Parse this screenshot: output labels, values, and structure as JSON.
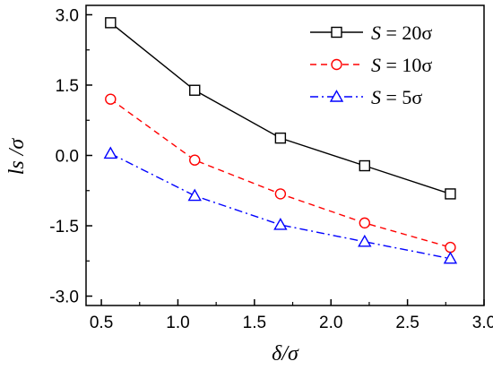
{
  "chart_data": {
    "type": "line",
    "xlabel": "δ/σ",
    "ylabel": "ls /σ",
    "xlim": [
      0.4,
      3.0
    ],
    "ylim": [
      -3.2,
      3.2
    ],
    "xticks": [
      "0.5",
      "1.0",
      "1.5",
      "2.0",
      "2.5",
      "3.0"
    ],
    "yticks": [
      "3.0",
      "1.5",
      "0.0",
      "-1.5",
      "-3.0"
    ],
    "grid": false,
    "legend": "top-right",
    "x": [
      0.56,
      1.11,
      1.67,
      2.22,
      2.78
    ],
    "series": [
      {
        "name": "S = 20σ",
        "color": "#000000",
        "line": "solid",
        "marker": "square",
        "values": [
          2.83,
          1.39,
          0.37,
          -0.22,
          -0.82
        ]
      },
      {
        "name": "S = 10σ",
        "color": "#ff0000",
        "line": "dashed",
        "marker": "circle",
        "values": [
          1.2,
          -0.1,
          -0.82,
          -1.44,
          -1.96
        ]
      },
      {
        "name": "S = 5σ",
        "color": "#0000ff",
        "line": "dash-dot",
        "marker": "triangle",
        "values": [
          0.04,
          -0.86,
          -1.48,
          -1.84,
          -2.2
        ]
      }
    ]
  }
}
